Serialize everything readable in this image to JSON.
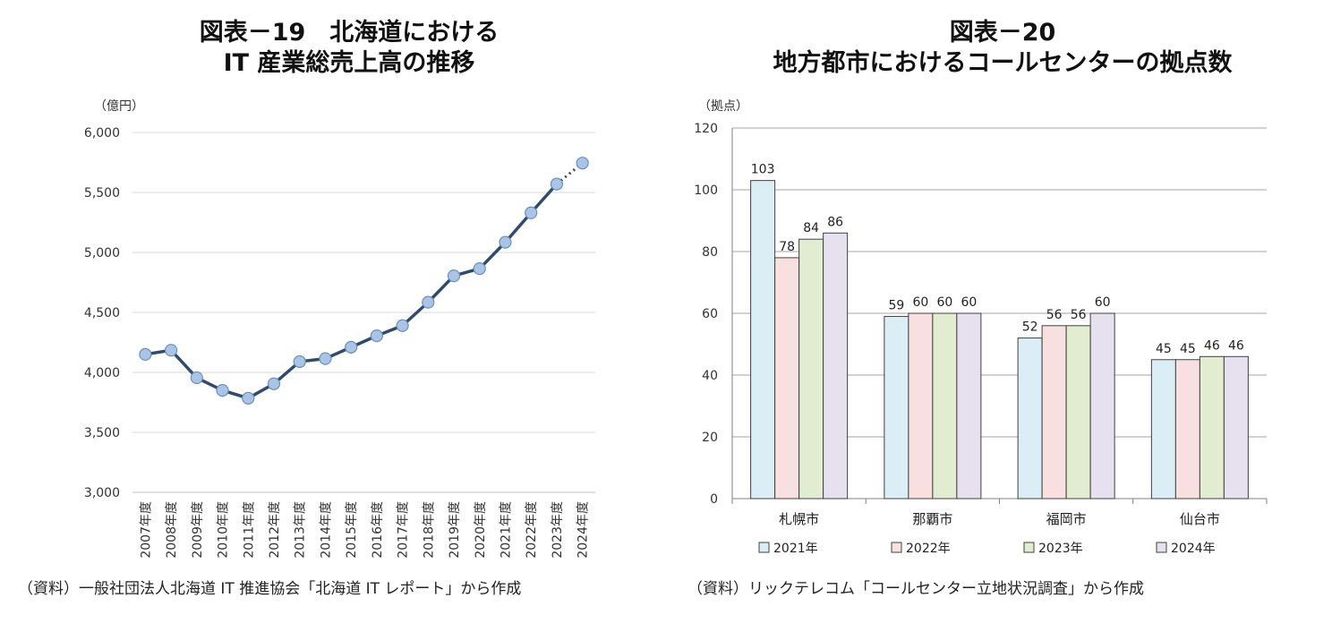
{
  "chart_data": [
    {
      "type": "line",
      "title": "図表－19　北海道における",
      "subtitle": "IT 産業総売上高の推移",
      "ylabel": "（億円）",
      "ylim": [
        3000,
        6000
      ],
      "yticks": [
        3000,
        3500,
        4000,
        4500,
        5000,
        5500,
        6000
      ],
      "ytick_labels": [
        "3,000",
        "3,500",
        "4,000",
        "4,500",
        "5,000",
        "5,500",
        "6,000"
      ],
      "grid": true,
      "categories": [
        "2007年度",
        "2008年度",
        "2009年度",
        "2010年度",
        "2011年度",
        "2012年度",
        "2013年度",
        "2014年度",
        "2015年度",
        "2016年度",
        "2017年度",
        "2018年度",
        "2019年度",
        "2020年度",
        "2021年度",
        "2022年度",
        "2023年度",
        "2024年度"
      ],
      "series": [
        {
          "values": [
            4150,
            4185,
            3955,
            3850,
            3785,
            3905,
            4090,
            4115,
            4210,
            4305,
            4390,
            4585,
            4805,
            4865,
            5085,
            5330,
            5570,
            5745
          ],
          "dotted_last_segment": true
        }
      ],
      "line_color": "#2f4b6e",
      "marker_color": "#a9c4e4",
      "source": "（資料）一般社団法人北海道 IT 推進協会「北海道 IT レポート」から作成"
    },
    {
      "type": "bar",
      "title": "図表－20",
      "subtitle": "地方都市におけるコールセンターの拠点数",
      "ylabel": "（拠点）",
      "ylim": [
        0,
        120
      ],
      "yticks": [
        0,
        20,
        40,
        60,
        80,
        100,
        120
      ],
      "grid": true,
      "categories": [
        "札幌市",
        "那覇市",
        "福岡市",
        "仙台市"
      ],
      "series": [
        {
          "name": "2021年",
          "values": [
            103,
            59,
            52,
            45
          ],
          "color": "#dbeef5"
        },
        {
          "name": "2022年",
          "values": [
            78,
            60,
            56,
            45
          ],
          "color": "#f8dfe0"
        },
        {
          "name": "2023年",
          "values": [
            84,
            60,
            56,
            46
          ],
          "color": "#e1ecd0"
        },
        {
          "name": "2024年",
          "values": [
            86,
            60,
            60,
            46
          ],
          "color": "#e6e0ef"
        }
      ],
      "legend_position": "bottom",
      "source": "（資料）リックテレコム「コールセンター立地状況調査」から作成"
    }
  ]
}
